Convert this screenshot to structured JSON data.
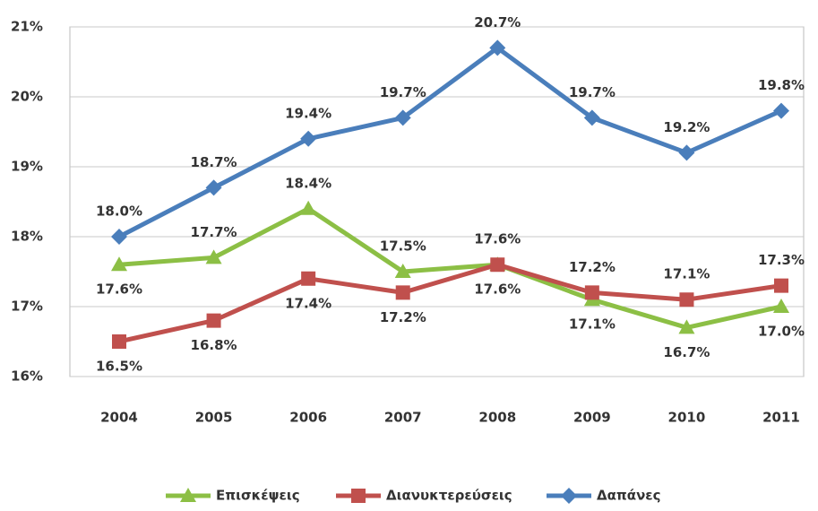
{
  "chart_data": {
    "type": "line",
    "categories": [
      "2004",
      "2005",
      "2006",
      "2007",
      "2008",
      "2009",
      "2010",
      "2011"
    ],
    "series": [
      {
        "name": "Επισκέψεις",
        "color": "#8cbf45",
        "marker": "triangle",
        "values": [
          17.6,
          17.7,
          18.4,
          17.5,
          17.6,
          17.1,
          16.7,
          17.0
        ],
        "value_labels": [
          "17.6%",
          "17.7%",
          "18.4%",
          "17.5%",
          "17.6%",
          "17.1%",
          "16.7%",
          "17.0%"
        ]
      },
      {
        "name": "Διανυκτερεύσεις",
        "color": "#c0504d",
        "marker": "square",
        "values": [
          16.5,
          16.8,
          17.4,
          17.2,
          17.6,
          17.2,
          17.1,
          17.3
        ],
        "value_labels": [
          "16.5%",
          "16.8%",
          "17.4%",
          "17.2%",
          "17.6%",
          "17.2%",
          "17.1%",
          "17.3%"
        ]
      },
      {
        "name": "Δαπάνες",
        "color": "#4a7ebb",
        "marker": "diamond",
        "values": [
          18.0,
          18.7,
          19.4,
          19.7,
          20.7,
          19.7,
          19.2,
          19.8
        ],
        "value_labels": [
          "18.0%",
          "18.7%",
          "19.4%",
          "19.7%",
          "20.7%",
          "19.7%",
          "19.2%",
          "19.8%"
        ]
      }
    ],
    "ylim": [
      16,
      21
    ],
    "yticks": [
      {
        "value": 16,
        "label": "16%"
      },
      {
        "value": 17,
        "label": "17%"
      },
      {
        "value": 18,
        "label": "18%"
      },
      {
        "value": 19,
        "label": "19%"
      },
      {
        "value": 20,
        "label": "20%"
      },
      {
        "value": 21,
        "label": "21%"
      }
    ],
    "grid": true,
    "legend": "bottom"
  }
}
